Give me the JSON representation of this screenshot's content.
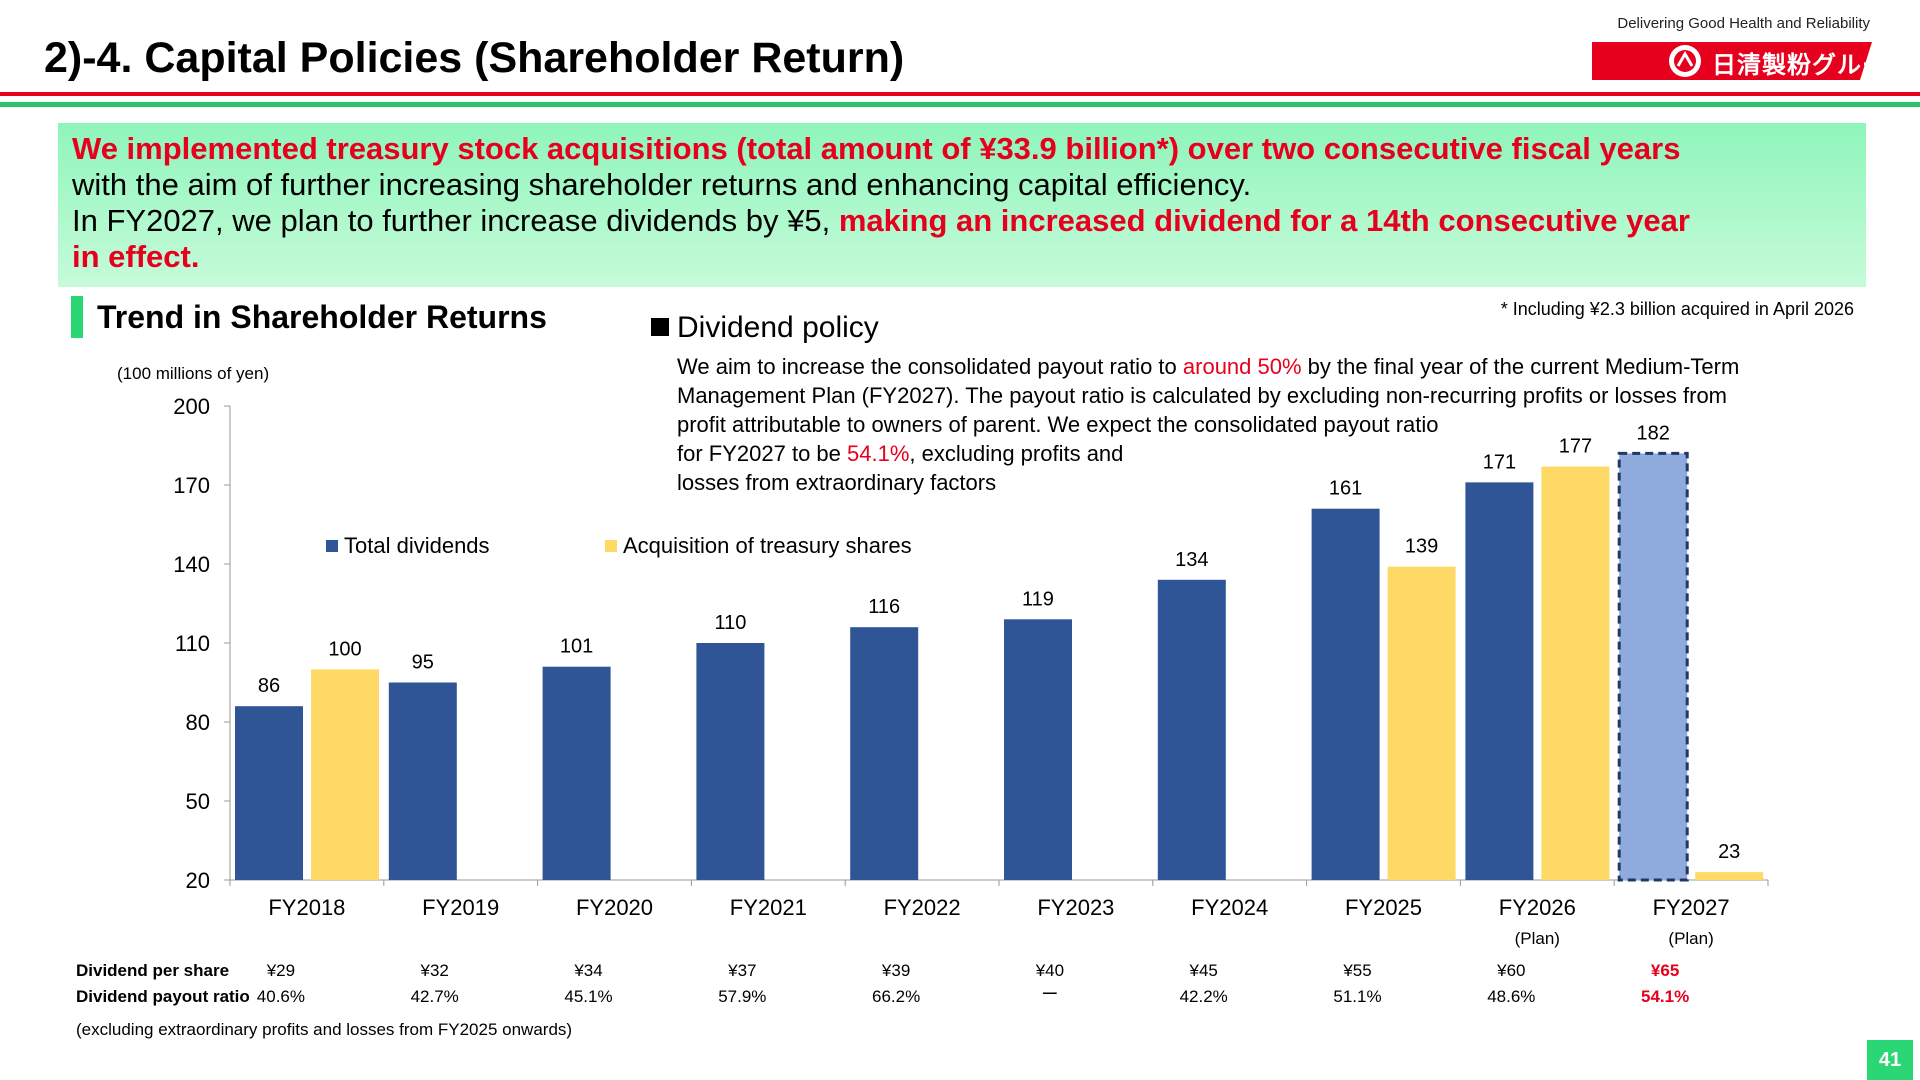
{
  "header": {
    "title": "2)-4. Capital Policies (Shareholder Return)",
    "tagline": "Delivering Good Health and Reliability",
    "logo_text": "日清製粉グループ"
  },
  "summary": {
    "line1_red": "We implemented treasury stock acquisitions (total amount of ¥33.9 billion*) over two consecutive fiscal years",
    "line2": "with the aim of further increasing shareholder returns and enhancing capital efficiency.",
    "line3_black": "In FY2027, we plan to further increase dividends by ¥5, ",
    "line3_red": "making an increased dividend for a 14th consecutive year",
    "line4_red": "in effect."
  },
  "footnote_acquisition": "* Including ¥2.3 billion acquired in April 2026",
  "section_title": "Trend in Shareholder Returns",
  "dividend_policy": {
    "heading": "Dividend policy",
    "line1_a": "We aim to increase the consolidated payout ratio to ",
    "line1_red": "around 50%",
    "line1_b": " by the final year of the current Medium-Term",
    "line2": "Management Plan (FY2027). The payout ratio is calculated by excluding non-recurring profits or losses from",
    "line3": "profit attributable to owners of parent. We expect the consolidated payout ratio",
    "line4_a": "for FY2027 to be ",
    "line4_red": "54.1%",
    "line4_b": ", excluding profits and",
    "line5": "losses from extraordinary factors"
  },
  "chart_data": {
    "type": "bar",
    "unit_label": "(100 millions of yen)",
    "ylim": [
      20,
      200
    ],
    "yticks": [
      20,
      50,
      80,
      110,
      140,
      170,
      200
    ],
    "categories": [
      "FY2018",
      "FY2019",
      "FY2020",
      "FY2021",
      "FY2022",
      "FY2023",
      "FY2024",
      "FY2025",
      "FY2026",
      "FY2027"
    ],
    "category_sublabels": [
      "",
      "",
      "",
      "",
      "",
      "",
      "",
      "",
      "(Plan)",
      "(Plan)"
    ],
    "series": [
      {
        "name": "Total dividends",
        "color": "#2f5597",
        "values": [
          86,
          95,
          101,
          110,
          116,
          119,
          134,
          161,
          171,
          182
        ]
      },
      {
        "name": "Acquisition of treasury shares",
        "color": "#ffd966",
        "values": [
          100,
          null,
          null,
          null,
          null,
          null,
          null,
          139,
          177,
          23
        ]
      }
    ],
    "plan_bar_color": "#8faadc",
    "plan_bar_border": "#203864"
  },
  "table": {
    "row1_label": "Dividend per share",
    "row2_label": "Dividend payout ratio",
    "dividend_per_share": [
      "¥29",
      "¥32",
      "¥34",
      "¥37",
      "¥39",
      "¥40",
      "¥45",
      "¥55",
      "¥60",
      "¥65"
    ],
    "payout_ratio": [
      "40.6%",
      "42.7%",
      "45.1%",
      "57.9%",
      "66.2%",
      "ー",
      "42.2%",
      "51.1%",
      "48.6%",
      "54.1%"
    ],
    "note": "(excluding extraordinary profits and losses from FY2025 onwards)"
  },
  "page_number": "41"
}
